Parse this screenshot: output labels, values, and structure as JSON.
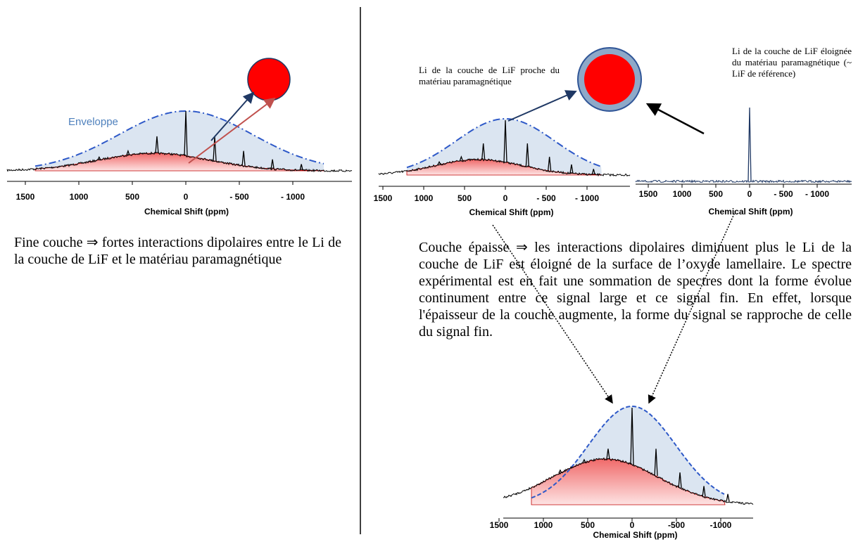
{
  "left": {
    "annotation": "Enveloppe",
    "axis": {
      "ticks": [
        "1500",
        "1000",
        "500",
        "0",
        "- 500",
        "- 1000"
      ],
      "title": "Chemical Shift (ppm)"
    },
    "caption": "Fine couche ⇒ fortes interactions dipolaires entre le Li de la couche de LiF et le matériau paramagnétique"
  },
  "middle": {
    "annotation": "Li de la couche de LiF proche du matériau paramagnétique",
    "axis": {
      "ticks": [
        "1500",
        "1000",
        "500",
        "0",
        "- 500",
        "- 1000"
      ],
      "title": "Chemical Shift (ppm)"
    }
  },
  "right": {
    "annotation": "Li de la couche de LiF éloignée du matériau paramagnétique (~ LiF de référence)",
    "axis": {
      "ticks": [
        "1500",
        "1000",
        "500",
        "0",
        "- 500",
        "- 1000"
      ],
      "title": "Chemical Shift (ppm)"
    }
  },
  "caption_right": "Couche épaisse ⇒ les interactions dipolaires diminuent plus le Li de la couche de LiF est éloigné de la surface de l’oxyde lamellaire. Le spectre expérimental est en fait une sommation de spectres dont la forme évolue continument entre ce signal large et ce signal fin. En effet, lorsque l'épaisseur de la couche augmente, la forme du signal se rapproche de celle du signal fin.",
  "bottom": {
    "axis": {
      "ticks": [
        "1500",
        "1000",
        "500",
        "0",
        "-500",
        "-1000"
      ],
      "title": "Chemical Shift (ppm)"
    }
  }
}
